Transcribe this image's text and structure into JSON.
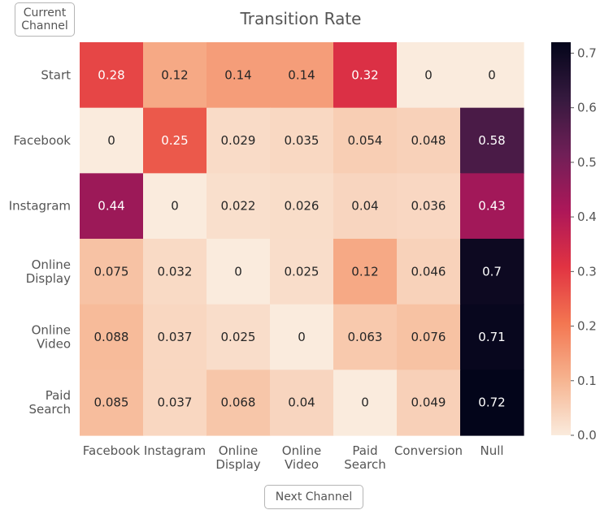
{
  "chart_data": {
    "type": "heatmap",
    "title": "Transition Rate",
    "xlabel": "Next Channel",
    "ylabel": "Current\nChannel",
    "x_categories": [
      "Facebook",
      "Instagram",
      "Online\nDisplay",
      "Online\nVideo",
      "Paid\nSearch",
      "Conversion",
      "Null"
    ],
    "y_categories": [
      "Start",
      "Facebook",
      "Instagram",
      "Online\nDisplay",
      "Online\nVideo",
      "Paid\nSearch"
    ],
    "values": [
      [
        0.28,
        0.12,
        0.14,
        0.14,
        0.32,
        0,
        0
      ],
      [
        0,
        0.25,
        0.029,
        0.035,
        0.054,
        0.048,
        0.58
      ],
      [
        0.44,
        0,
        0.022,
        0.026,
        0.04,
        0.036,
        0.43
      ],
      [
        0.075,
        0.032,
        0,
        0.025,
        0.12,
        0.046,
        0.7
      ],
      [
        0.088,
        0.037,
        0.025,
        0,
        0.063,
        0.076,
        0.71
      ],
      [
        0.085,
        0.037,
        0.068,
        0.04,
        0,
        0.049,
        0.72
      ]
    ],
    "colorbar": {
      "min": 0.0,
      "max": 0.72,
      "ticks": [
        0.0,
        0.1,
        0.2,
        0.3,
        0.4,
        0.5,
        0.6,
        0.7
      ],
      "tick_labels": [
        "0.0",
        "0.1",
        "0.2",
        "0.3",
        "0.4",
        "0.5",
        "0.6",
        "0.7"
      ],
      "colormap": "rocket_r",
      "color_stops": [
        "#faebdd",
        "#f6b38f",
        "#f37651",
        "#e13342",
        "#ad1759",
        "#701f57",
        "#35193e",
        "#03051a"
      ]
    },
    "grid": false
  }
}
